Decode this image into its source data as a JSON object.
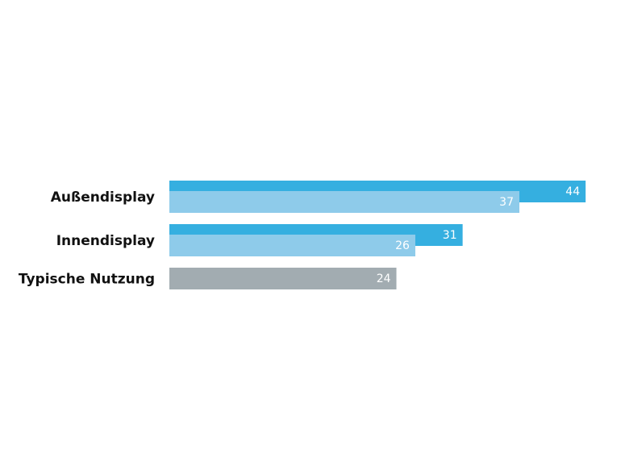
{
  "chart_data": {
    "type": "bar",
    "orientation": "horizontal",
    "categories": [
      "Außendisplay",
      "Innendisplay",
      "Typische Nutzung"
    ],
    "series": [
      {
        "color": "#35afe0",
        "values": [
          44,
          31,
          null
        ]
      },
      {
        "color": "#8ecbea",
        "values": [
          37,
          26,
          null
        ]
      },
      {
        "color": "#a2acb1",
        "values": [
          null,
          null,
          24
        ]
      }
    ]
  }
}
